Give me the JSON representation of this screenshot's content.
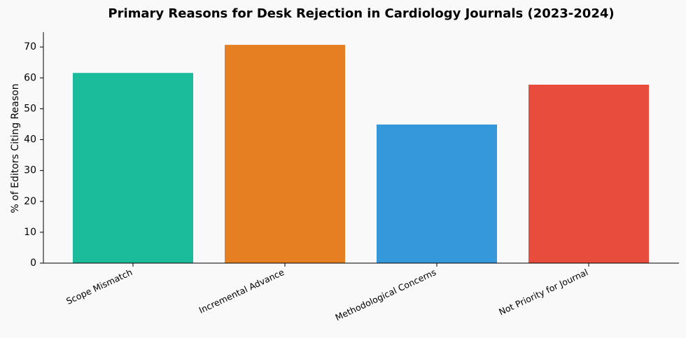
{
  "chart_data": {
    "type": "bar",
    "title": "Primary Reasons for Desk Rejection in Cardiology Journals (2023-2024)",
    "ylabel": "% of Editors Citing Reason",
    "categories": [
      "Scope Mismatch",
      "Incremental Advance",
      "Methodological Concerns",
      "Not Priority for Journal"
    ],
    "values": [
      61.6,
      70.7,
      44.9,
      57.8
    ],
    "colors": [
      "#1abc9c",
      "#e67e22",
      "#3498db",
      "#e74c3c"
    ],
    "ylim": [
      0,
      74.8
    ],
    "yticks": [
      0,
      10,
      20,
      30,
      40,
      50,
      60,
      70
    ],
    "grid": false
  }
}
